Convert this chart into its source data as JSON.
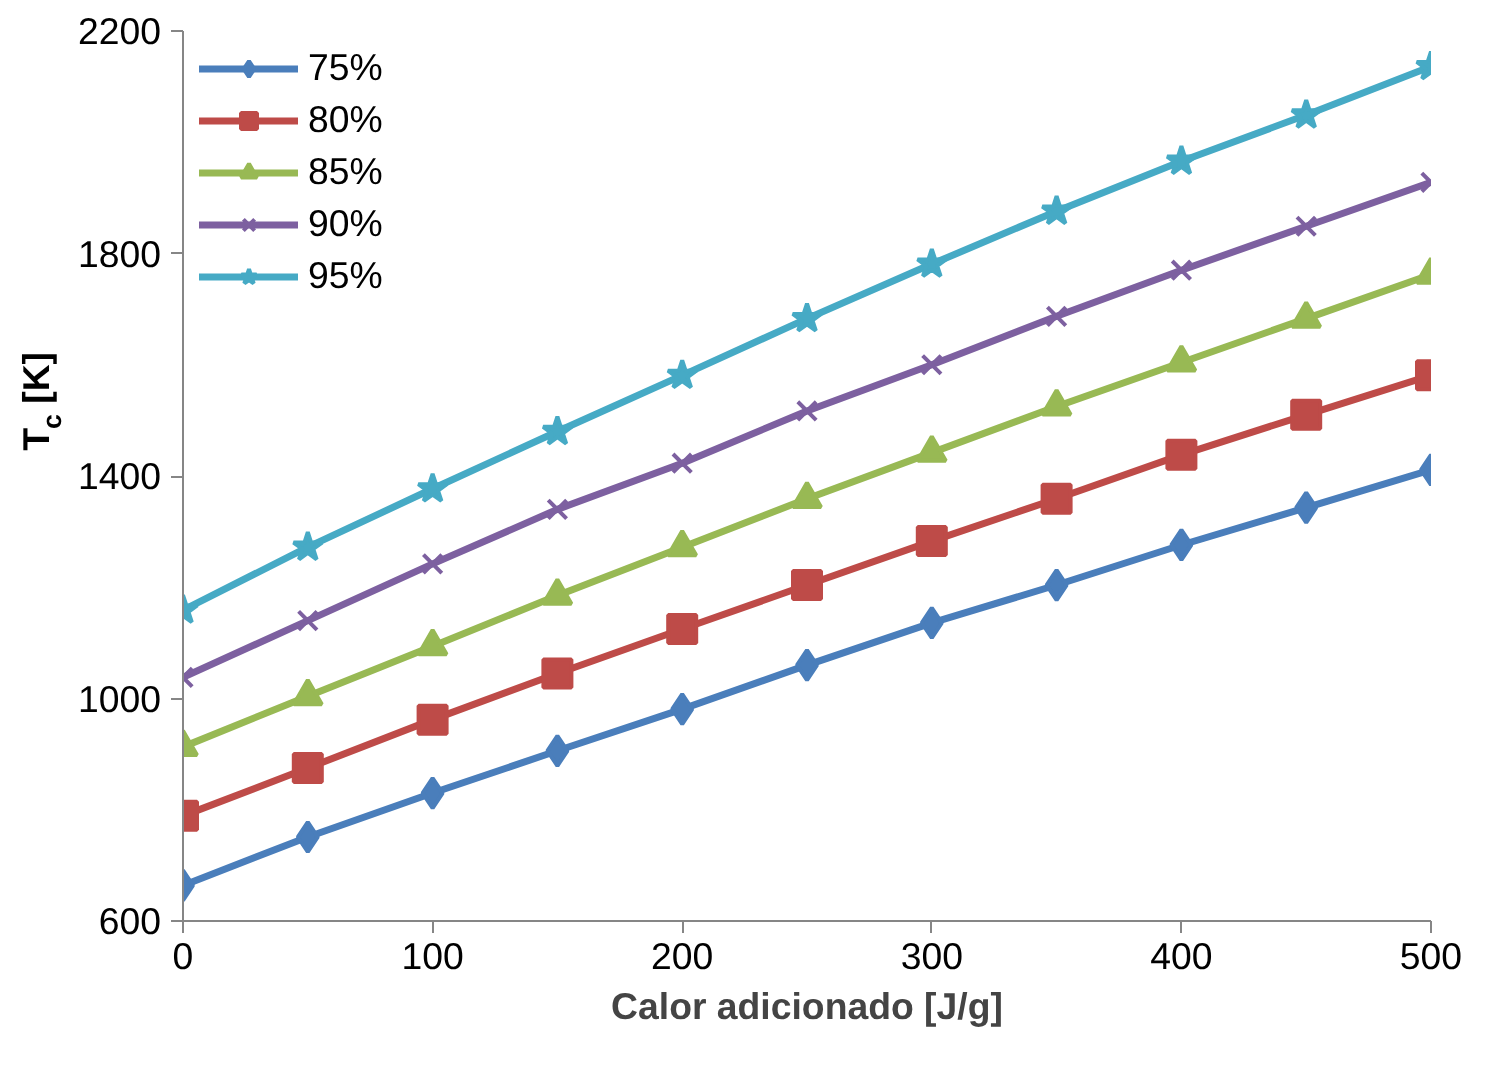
{
  "chart_data": {
    "type": "line",
    "xlabel": "Calor adicionado [J/g]",
    "ylabel": "T$_{c}$ [K]",
    "x": [
      0,
      50,
      100,
      150,
      200,
      250,
      300,
      350,
      400,
      450,
      500
    ],
    "xlim": [
      0,
      500
    ],
    "xticks": [
      0,
      100,
      200,
      300,
      400,
      500
    ],
    "ylim": [
      600,
      2200
    ],
    "yticks": [
      600,
      1000,
      1400,
      1800,
      2200
    ],
    "grid": false,
    "legend": "top left",
    "line_style": "solid",
    "series": [
      {
        "name": "75%",
        "color": "#4a7ebb",
        "marker": "diamond",
        "values": [
          664,
          751,
          830,
          906,
          981,
          1060,
          1136,
          1204,
          1276,
          1343,
          1411
        ]
      },
      {
        "name": "80%",
        "color": "#be4b48",
        "marker": "square",
        "values": [
          789,
          875,
          962,
          1045,
          1125,
          1204,
          1283,
          1359,
          1438,
          1510,
          1581
        ]
      },
      {
        "name": "85%",
        "color": "#98b954",
        "marker": "triangle",
        "values": [
          913,
          1004,
          1094,
          1185,
          1272,
          1359,
          1442,
          1525,
          1604,
          1683,
          1762
        ]
      },
      {
        "name": "90%",
        "color": "#7d60a0",
        "marker": "cross",
        "values": [
          1038,
          1140,
          1242,
          1340,
          1423,
          1517,
          1600,
          1687,
          1770,
          1849,
          1928
        ]
      },
      {
        "name": "95%",
        "color": "#46aac5",
        "marker": "star",
        "values": [
          1159,
          1272,
          1377,
          1480,
          1581,
          1683,
          1781,
          1876,
          1966,
          2049,
          2136
        ]
      }
    ]
  }
}
